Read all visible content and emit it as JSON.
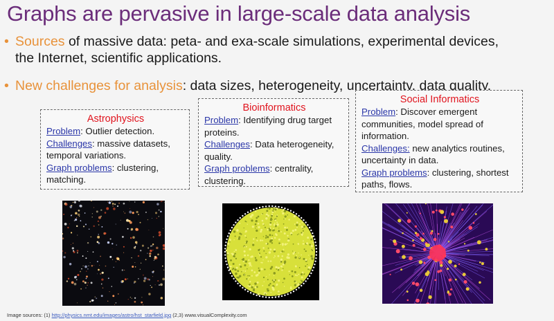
{
  "slide": {
    "title": "Graphs are pervasive in large-scale data analysis",
    "bullets": [
      {
        "highlight": "Sources",
        "rest_line1": " of massive data: peta- and exa-scale simulations, experimental devices,",
        "rest_line2": "the Internet, scientific applications."
      },
      {
        "highlight": "New challenges for analysis",
        "rest": ": data sizes, heterogeneity, uncertainty, data quality."
      }
    ],
    "boxes": [
      {
        "heading": "Astrophysics",
        "problem_label": "Problem",
        "problem_text": ": Outlier detection.",
        "challenges_label": "Challenges",
        "challenges_text": ": massive datasets, temporal variations.",
        "graph_label": "Graph problems",
        "graph_text": ": clustering, matching."
      },
      {
        "heading": "Bioinformatics",
        "problem_label": "Problem",
        "problem_text": ": Identifying drug target proteins.",
        "challenges_label": "Challenges",
        "challenges_text": ": Data heterogeneity, quality.",
        "graph_label": "Graph problems",
        "graph_text": ": centrality, clustering."
      },
      {
        "heading": "Social Informatics",
        "problem_label": "Problem",
        "problem_text": ": Discover emergent communities, model spread of information.",
        "challenges_label": "Challenges:",
        "challenges_text": " new analytics routines, uncertainty in data.",
        "graph_label": "Graph problems",
        "graph_text": ": clustering, shortest paths, flows."
      }
    ],
    "footer": {
      "prefix": "Image sources: (1) ",
      "link": "http://physics.nmt.edu/images/astro/hst_starfield.jpg",
      "suffix": "  (2,3) www.visualComplexity.com"
    }
  }
}
